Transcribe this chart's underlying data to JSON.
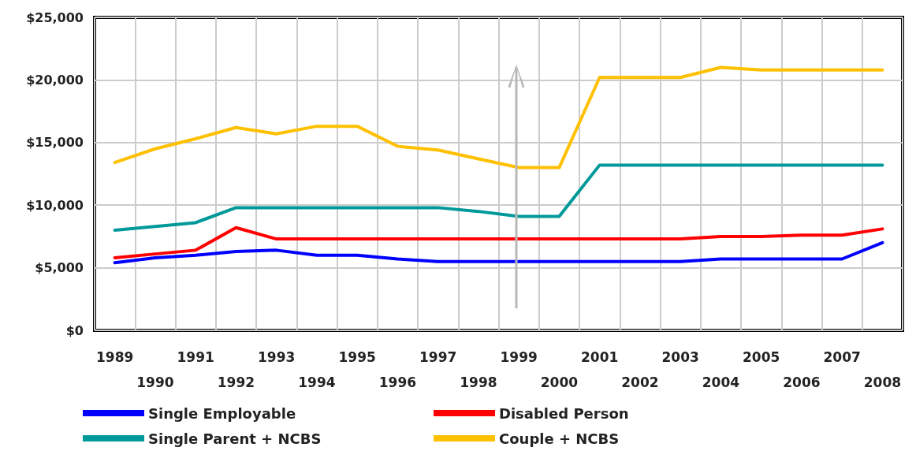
{
  "chart_data": {
    "type": "line",
    "categories": [
      "1989",
      "1990",
      "1991",
      "1992",
      "1993",
      "1994",
      "1995",
      "1996",
      "1997",
      "1998",
      "1999",
      "2000",
      "2001",
      "2002",
      "2003",
      "2004",
      "2005",
      "2006",
      "2007",
      "2008"
    ],
    "series": [
      {
        "name": "Single Employable",
        "color": "#0000ff",
        "values": [
          5400,
          5800,
          6000,
          6300,
          6400,
          6000,
          6000,
          5700,
          5500,
          5500,
          5500,
          5500,
          5500,
          5500,
          5500,
          5700,
          5700,
          5700,
          5700,
          7000
        ]
      },
      {
        "name": "Disabled Person",
        "color": "#ff0000",
        "values": [
          5800,
          6100,
          6400,
          8200,
          7300,
          7300,
          7300,
          7300,
          7300,
          7300,
          7300,
          7300,
          7300,
          7300,
          7300,
          7500,
          7500,
          7600,
          7600,
          8100
        ]
      },
      {
        "name": "Single Parent + NCBS",
        "color": "#009999",
        "values": [
          8000,
          8300,
          8600,
          9800,
          9800,
          9800,
          9800,
          9800,
          9800,
          9500,
          9100,
          9100,
          13200,
          13200,
          13200,
          13200,
          13200,
          13200,
          13200,
          13200
        ]
      },
      {
        "name": "Couple + NCBS",
        "color": "#ffc000",
        "values": [
          13400,
          14500,
          15300,
          16200,
          15700,
          16300,
          16300,
          14700,
          14400,
          13700,
          13000,
          13000,
          20200,
          20200,
          20200,
          21000,
          20800,
          20800,
          20800,
          20800
        ]
      }
    ],
    "ylim": [
      0,
      25000
    ],
    "yticks": [
      {
        "value": 0,
        "label": "$0"
      },
      {
        "value": 5000,
        "label": "$5,000"
      },
      {
        "value": 10000,
        "label": "$10,000"
      },
      {
        "value": 15000,
        "label": "$15,000"
      },
      {
        "value": 20000,
        "label": "$20,000"
      },
      {
        "value": 25000,
        "label": "$25,000"
      }
    ],
    "grid": true,
    "legend": "bottom",
    "marker": "none",
    "line_style": "solid"
  }
}
